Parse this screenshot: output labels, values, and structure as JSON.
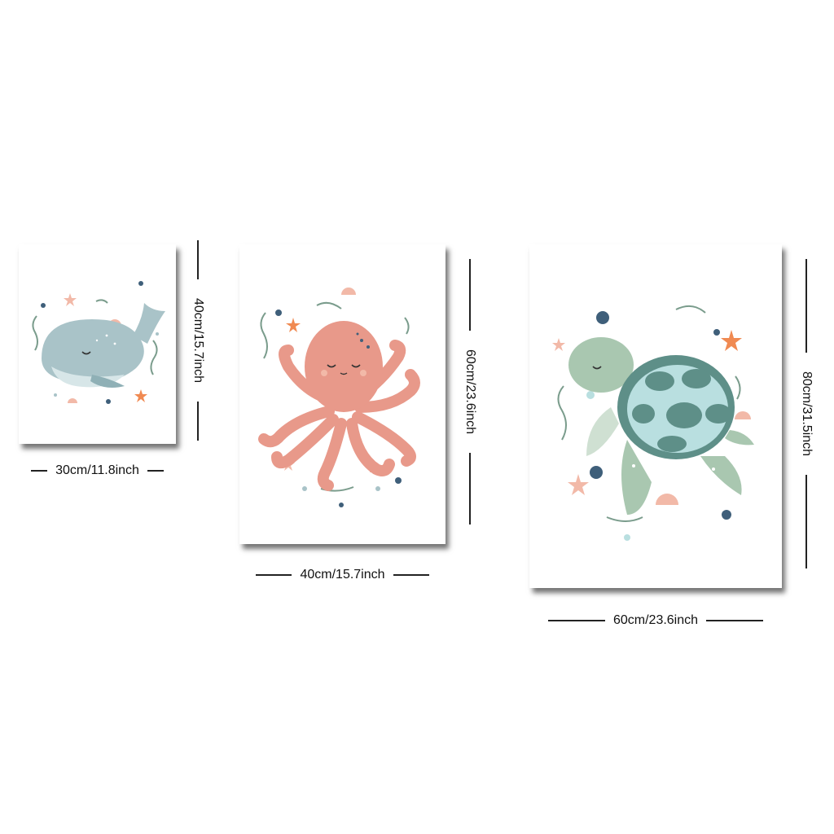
{
  "colors": {
    "whale": "#a9c3c8",
    "octopus": "#e8998a",
    "turtle_body": "#a9c7b0",
    "turtle_shell": "#b9dfe0",
    "shell_patch": "#5e8f88",
    "starfish": "#f08a52",
    "navy_dot": "#3f5f7a",
    "seaweed": "#7a9c8c",
    "shell_pink": "#f2b9a8"
  },
  "posters": [
    {
      "animal": "whale",
      "width_label": "30cm/11.8inch",
      "height_label": "40cm/15.7inch"
    },
    {
      "animal": "octopus",
      "width_label": "40cm/15.7inch",
      "height_label": "60cm/23.6inch"
    },
    {
      "animal": "turtle",
      "width_label": "60cm/23.6inch",
      "height_label": "80cm/31.5inch"
    }
  ]
}
